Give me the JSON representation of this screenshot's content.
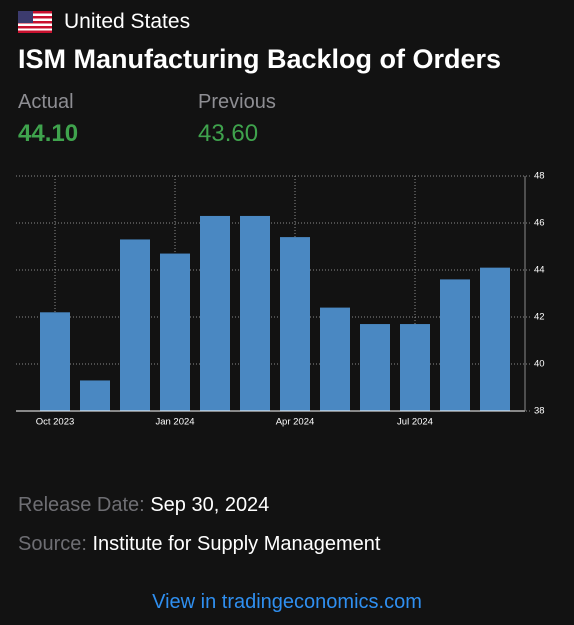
{
  "header": {
    "country": "United States",
    "title": "ISM Manufacturing Backlog of Orders"
  },
  "stats": {
    "actual_label": "Actual",
    "actual": "44.10",
    "previous_label": "Previous",
    "previous": "43.60"
  },
  "chart_data": {
    "type": "bar",
    "categories": [
      "Oct 2023",
      null,
      null,
      "Jan 2024",
      null,
      null,
      "Apr 2024",
      null,
      null,
      "Jul 2024",
      null,
      null
    ],
    "values": [
      42.2,
      39.3,
      45.3,
      44.7,
      46.3,
      46.3,
      45.4,
      42.4,
      41.7,
      41.7,
      43.6,
      44.1
    ],
    "color": "#4a88c2",
    "ylim": [
      38,
      48
    ],
    "yticks": [
      38,
      40,
      42,
      44,
      46,
      48
    ],
    "grid": true
  },
  "release": {
    "label": "Release Date:",
    "value": "Sep 30, 2024"
  },
  "source": {
    "label": "Source:",
    "value": "Institute for Supply Management"
  },
  "link": "View in tradingeconomics.com"
}
